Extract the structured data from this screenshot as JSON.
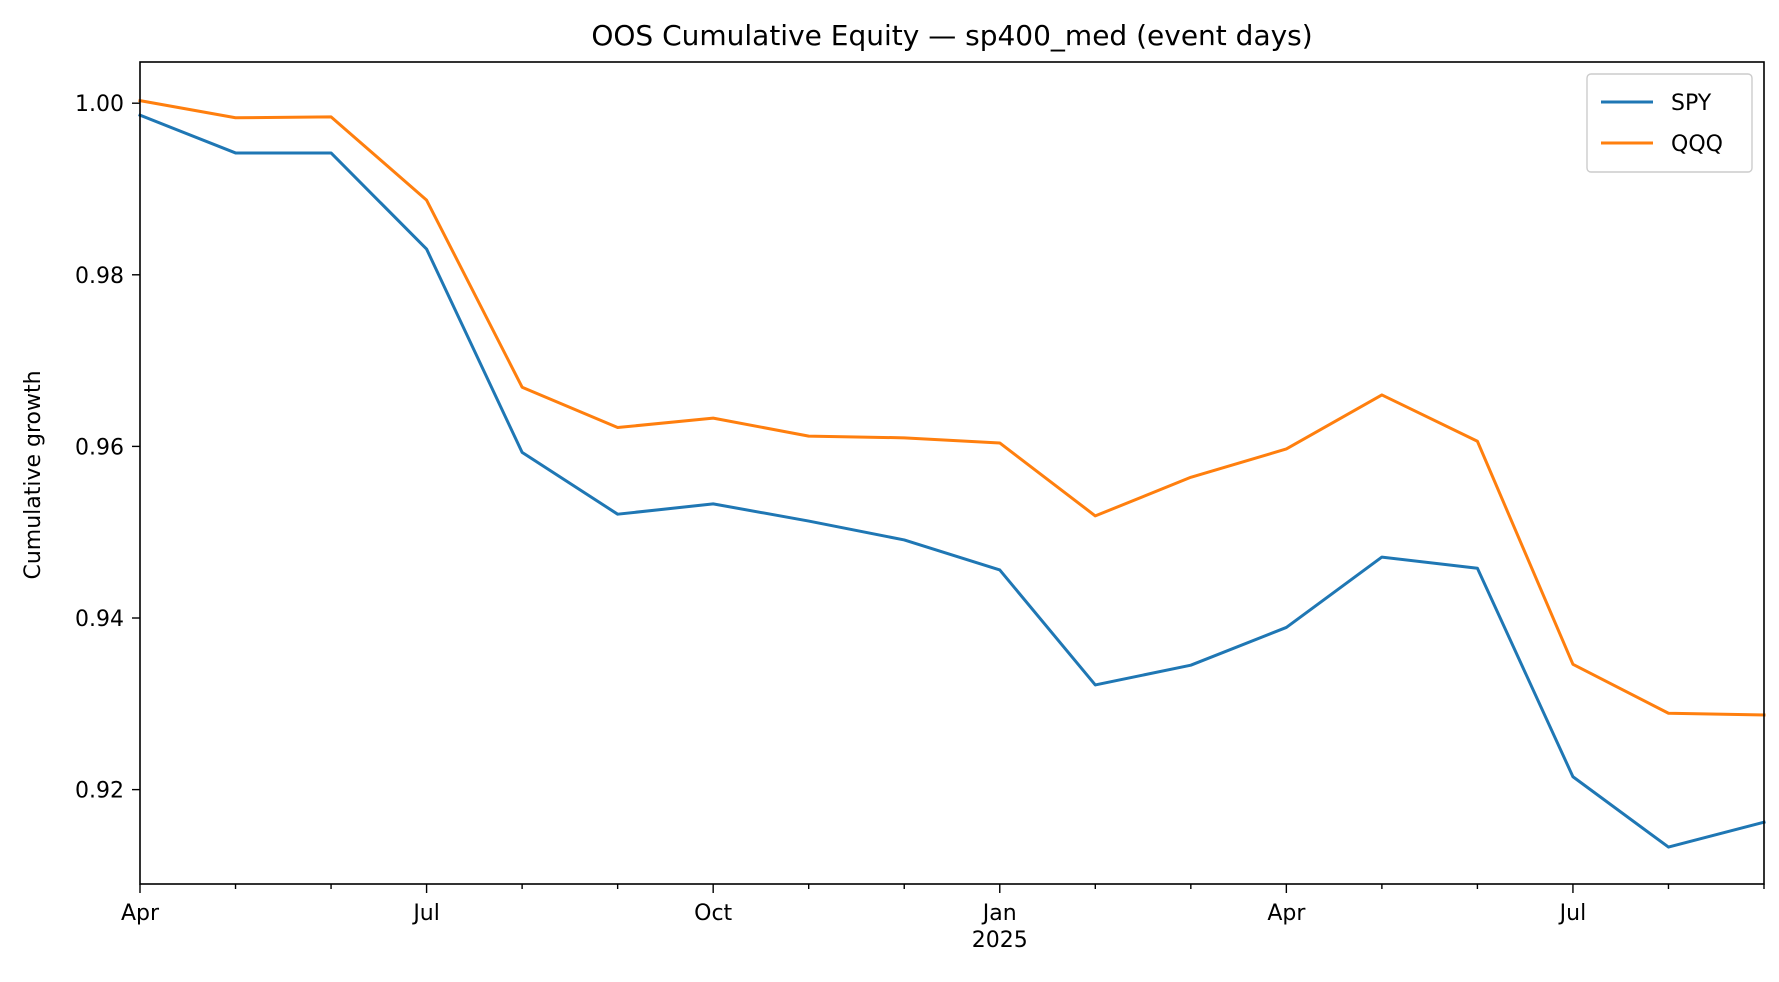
{
  "chart_data": {
    "type": "line",
    "title": "OOS Cumulative Equity — sp400_med (event days)",
    "xlabel": "",
    "ylabel": "Cumulative growth",
    "x": [
      "2024-04",
      "2024-05",
      "2024-06",
      "2024-07",
      "2024-08",
      "2024-09",
      "2024-10",
      "2024-11",
      "2024-12",
      "2025-01",
      "2025-02",
      "2025-03",
      "2025-04",
      "2025-05",
      "2025-06",
      "2025-07",
      "2025-08",
      "2025-09"
    ],
    "series": [
      {
        "name": "SPY",
        "color": "#1f77b4",
        "values": [
          0.9986,
          0.9942,
          0.9942,
          0.983,
          0.9593,
          0.9521,
          0.9533,
          0.9513,
          0.9491,
          0.9456,
          0.9322,
          0.9345,
          0.9389,
          0.9471,
          0.9458,
          0.9215,
          0.9133,
          0.9162
        ]
      },
      {
        "name": "QQQ",
        "color": "#ff7f0e",
        "values": [
          1.0003,
          0.9983,
          0.9984,
          0.9887,
          0.9669,
          0.9622,
          0.9633,
          0.9612,
          0.961,
          0.9604,
          0.9519,
          0.9564,
          0.9597,
          0.966,
          0.9606,
          0.9346,
          0.9289,
          0.9287
        ]
      }
    ],
    "xlim": [
      "2024-04",
      "2025-09"
    ],
    "ylim": [
      0.909,
      1.0048
    ],
    "yticks": [
      0.92,
      0.94,
      0.96,
      0.98,
      1.0
    ],
    "ytick_labels": [
      "0.92",
      "0.94",
      "0.96",
      "0.98",
      "1.00"
    ],
    "xtick_labels": [
      {
        "x": "2024-04",
        "label": "Apr",
        "sub": ""
      },
      {
        "x": "2024-07",
        "label": "Jul",
        "sub": ""
      },
      {
        "x": "2024-10",
        "label": "Oct",
        "sub": ""
      },
      {
        "x": "2025-01",
        "label": "Jan",
        "sub": "2025"
      },
      {
        "x": "2025-04",
        "label": "Apr",
        "sub": ""
      },
      {
        "x": "2025-07",
        "label": "Jul",
        "sub": ""
      }
    ],
    "grid": false,
    "legend_position": "top-right"
  }
}
